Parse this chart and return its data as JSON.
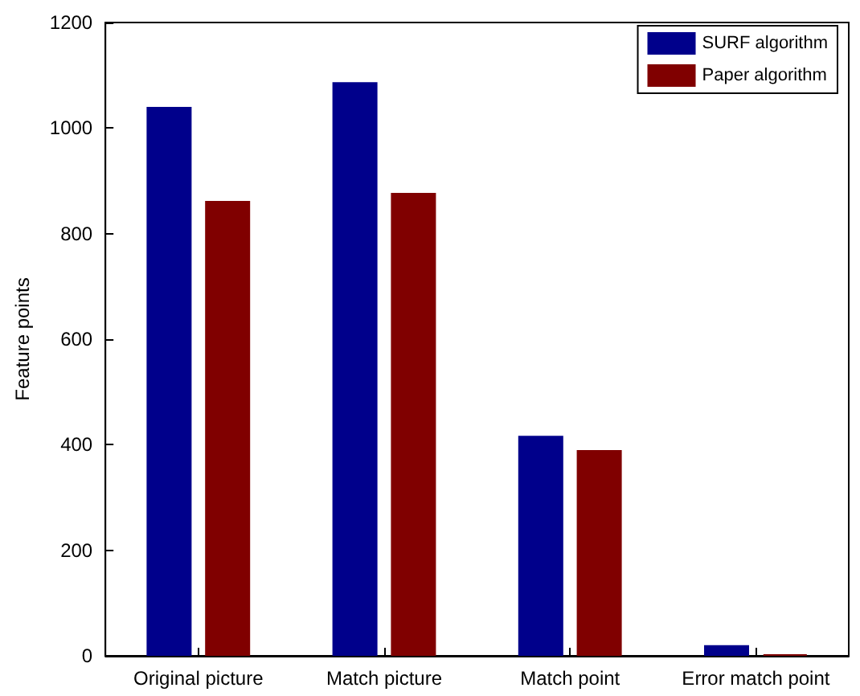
{
  "chart_data": {
    "type": "bar",
    "ylabel": "Feature points",
    "categories": [
      "Original picture",
      "Match picture",
      "Match point",
      "Error match point"
    ],
    "series": [
      {
        "name": "SURF algorithm",
        "color": "#00008b",
        "values": [
          1040,
          1087,
          417,
          20
        ]
      },
      {
        "name": "Paper algorithm",
        "color": "#800000",
        "values": [
          862,
          877,
          390,
          3
        ]
      }
    ],
    "ylim": [
      0,
      1200
    ],
    "yticks": [
      0,
      200,
      400,
      600,
      800,
      1000,
      1200
    ],
    "grid": false,
    "legend": "top right"
  }
}
